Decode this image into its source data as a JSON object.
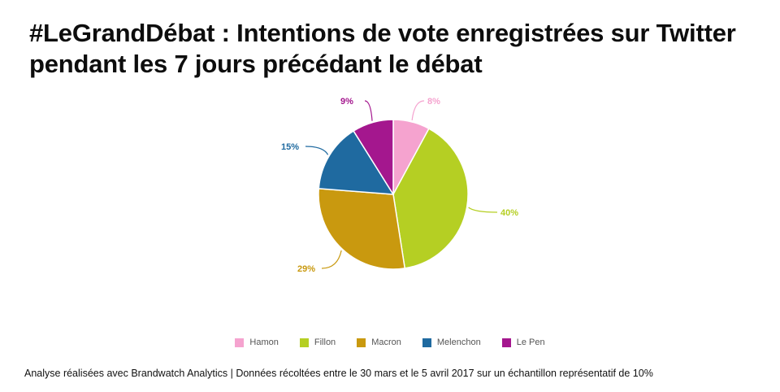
{
  "title_line1": "#LeGrandDébat : Intentions de vote enregistrées sur Twitter",
  "title_line2": "pendant les 7 jours précédant le débat",
  "footer": "Analyse réalisées avec Brandwatch Analytics | Données récoltées entre le 30 mars et le 5 avril 2017 sur un échantillon représentatif de 10%",
  "chart_data": {
    "type": "pie",
    "slices": [
      {
        "name": "Hamon",
        "value": 8,
        "label": "8%",
        "color": "#f5a3cf"
      },
      {
        "name": "Fillon",
        "value": 40,
        "label": "40%",
        "color": "#b5cf23"
      },
      {
        "name": "Macron",
        "value": 29,
        "label": "29%",
        "color": "#c9990f"
      },
      {
        "name": "Melenchon",
        "value": 15,
        "label": "15%",
        "color": "#1f6aa0"
      },
      {
        "name": "Le Pen",
        "value": 9,
        "label": "9%",
        "color": "#a4178e"
      }
    ],
    "legend_position": "bottom"
  }
}
